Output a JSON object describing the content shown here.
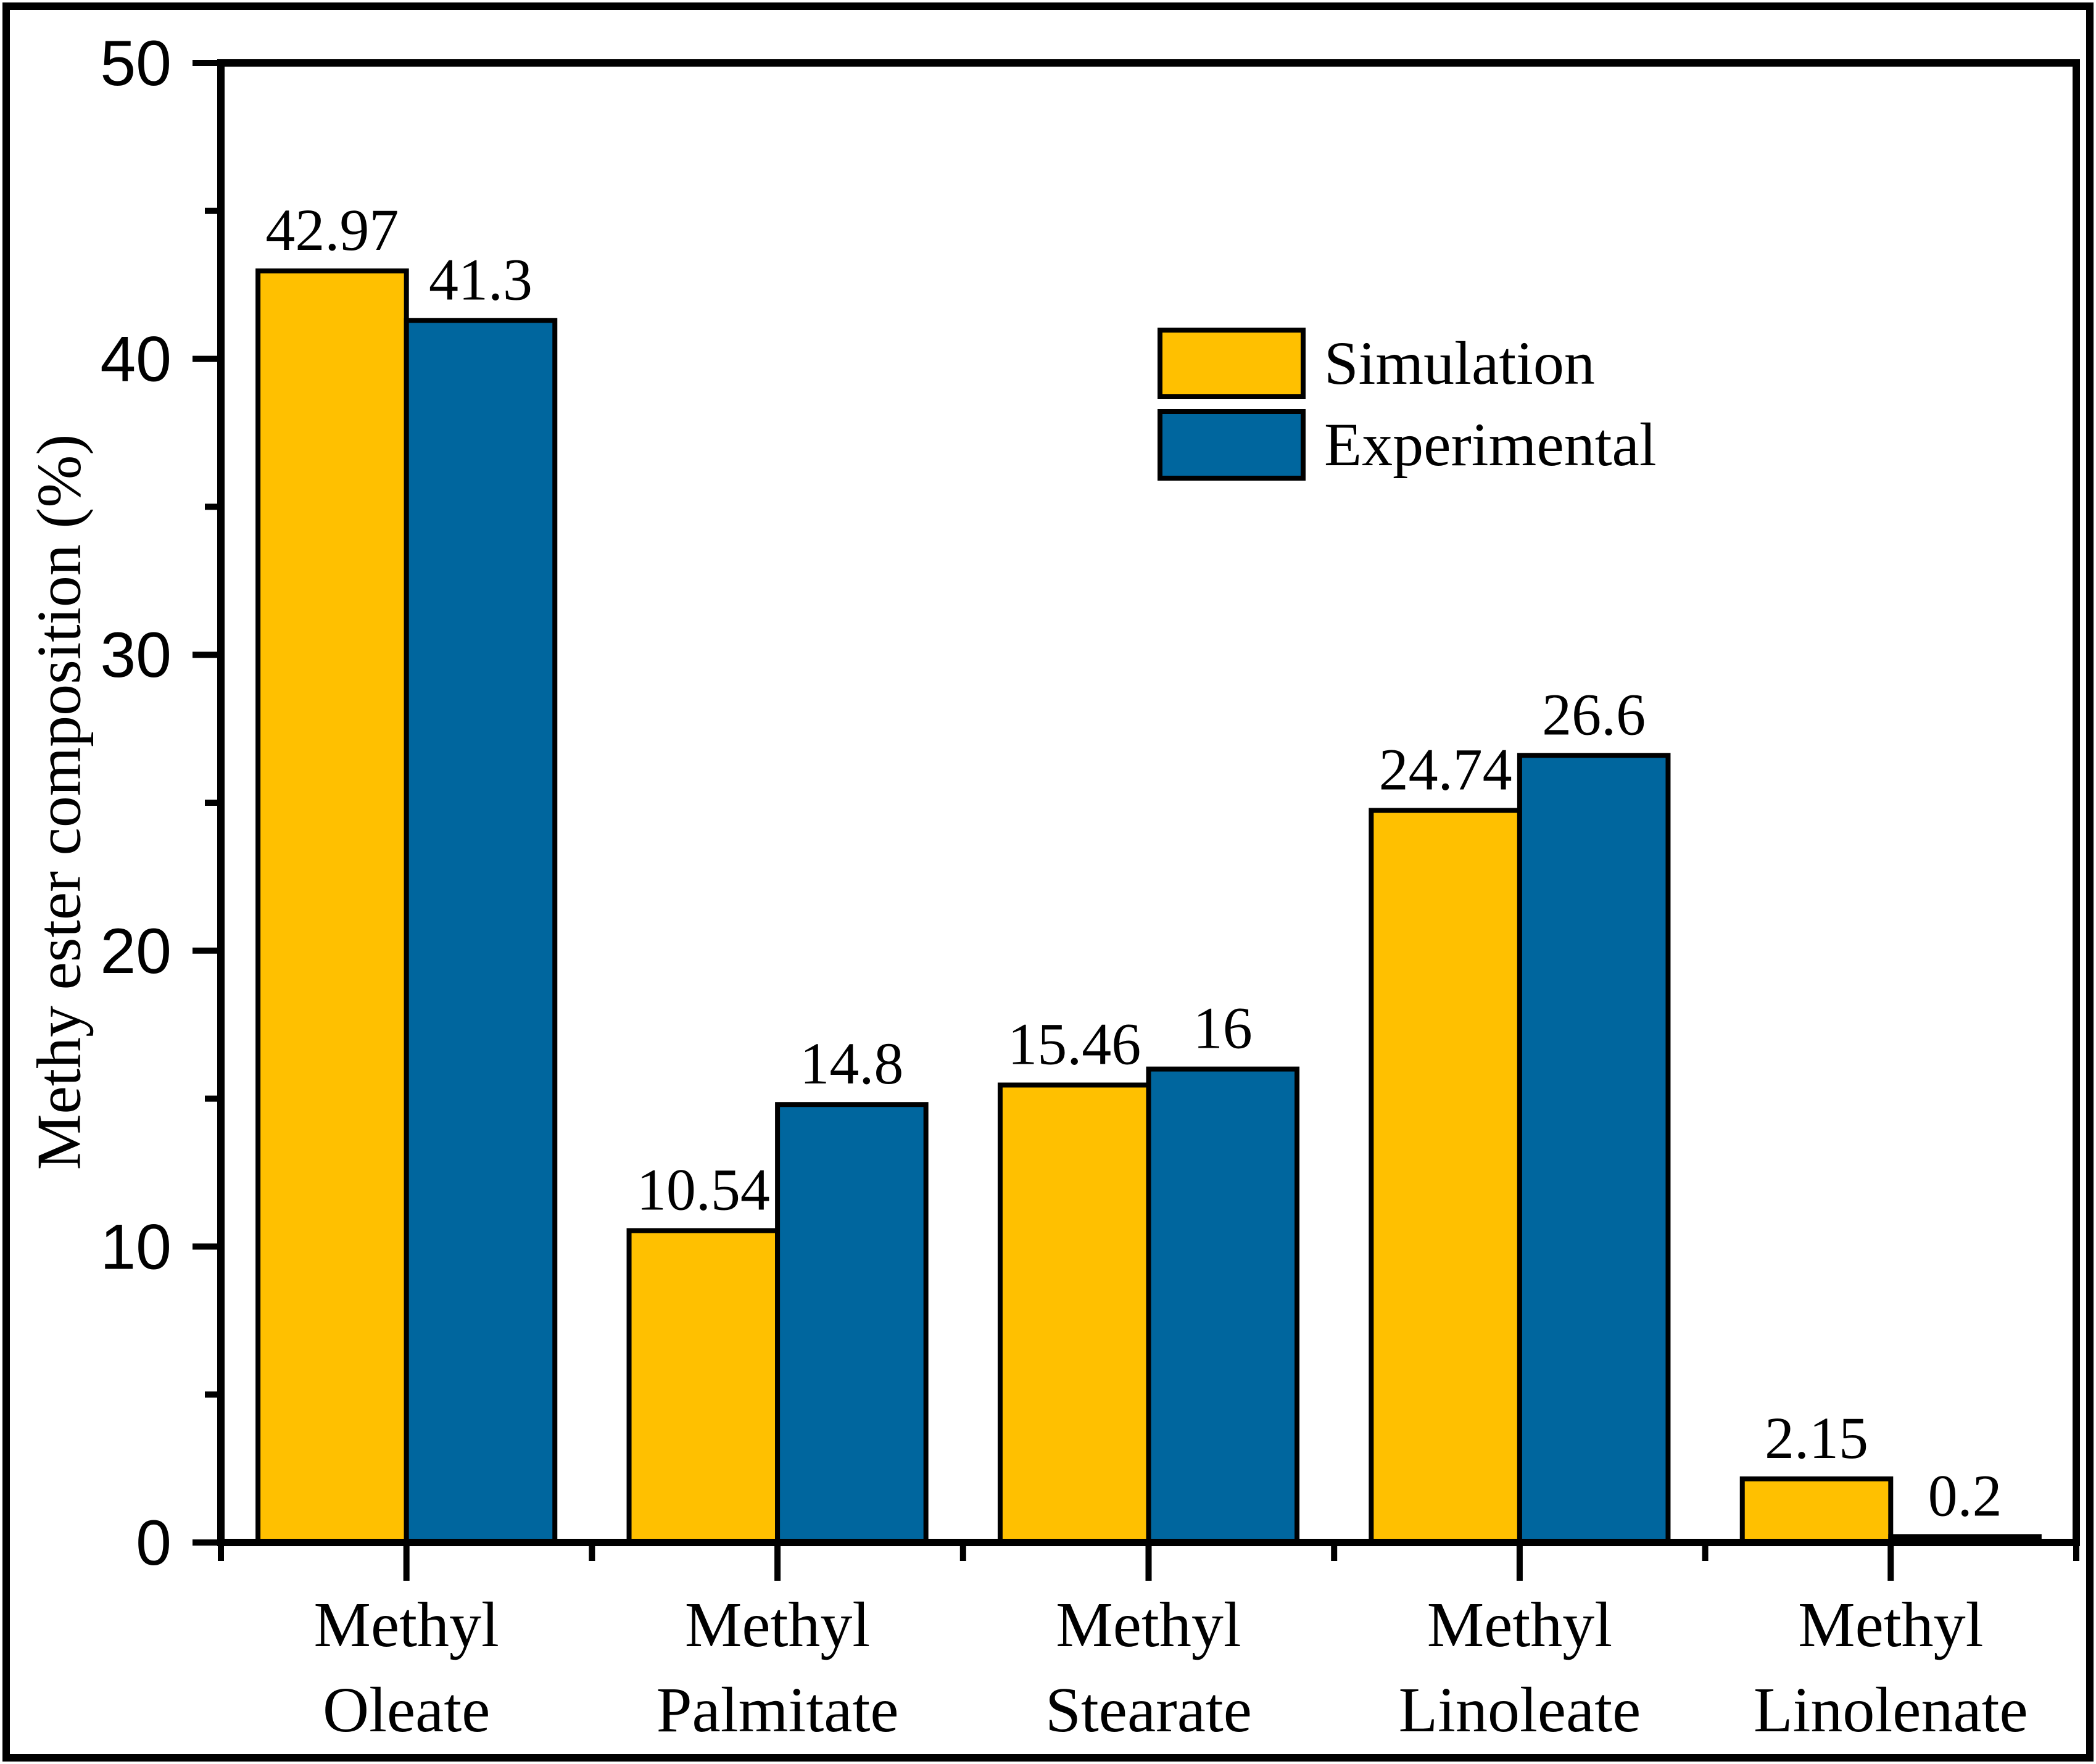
{
  "chart_data": {
    "type": "bar",
    "title": "",
    "ylabel": "Methy ester composition (%)",
    "xlabel": "",
    "ylim": [
      0,
      50
    ],
    "ytick_major_interval": 10,
    "ytick_minor_interval": 5,
    "yticks": [
      "0",
      "10",
      "20",
      "30",
      "40",
      "50"
    ],
    "grid": false,
    "legend_position": "upper-center",
    "categories": [
      "Methyl Oleate",
      "Methyl Palmitate",
      "Methyl Stearate",
      "Methyl Linoleate",
      "Methyl Linolenate"
    ],
    "category_lines": [
      [
        "Methyl",
        "Oleate"
      ],
      [
        "Methyl",
        "Palmitate"
      ],
      [
        "Methyl",
        "Stearate"
      ],
      [
        "Methyl",
        "Linoleate"
      ],
      [
        "Methyl",
        "Linolenate"
      ]
    ],
    "series": [
      {
        "name": "Simulation",
        "color": "#FFC000",
        "outline": "#000000",
        "values": [
          42.97,
          10.54,
          15.46,
          24.74,
          2.15
        ],
        "labels": [
          "42.97",
          "10.54",
          "15.46",
          "24.74",
          "2.15"
        ]
      },
      {
        "name": "Experimental",
        "color": "#00669E",
        "outline": "#000000",
        "values": [
          41.3,
          14.8,
          16,
          26.6,
          0.2
        ],
        "labels": [
          "41.3",
          "14.8",
          "16",
          "26.6",
          "0.2"
        ]
      }
    ]
  },
  "colors": {
    "axis": "#000000",
    "text": "#000000",
    "background": "#ffffff"
  }
}
